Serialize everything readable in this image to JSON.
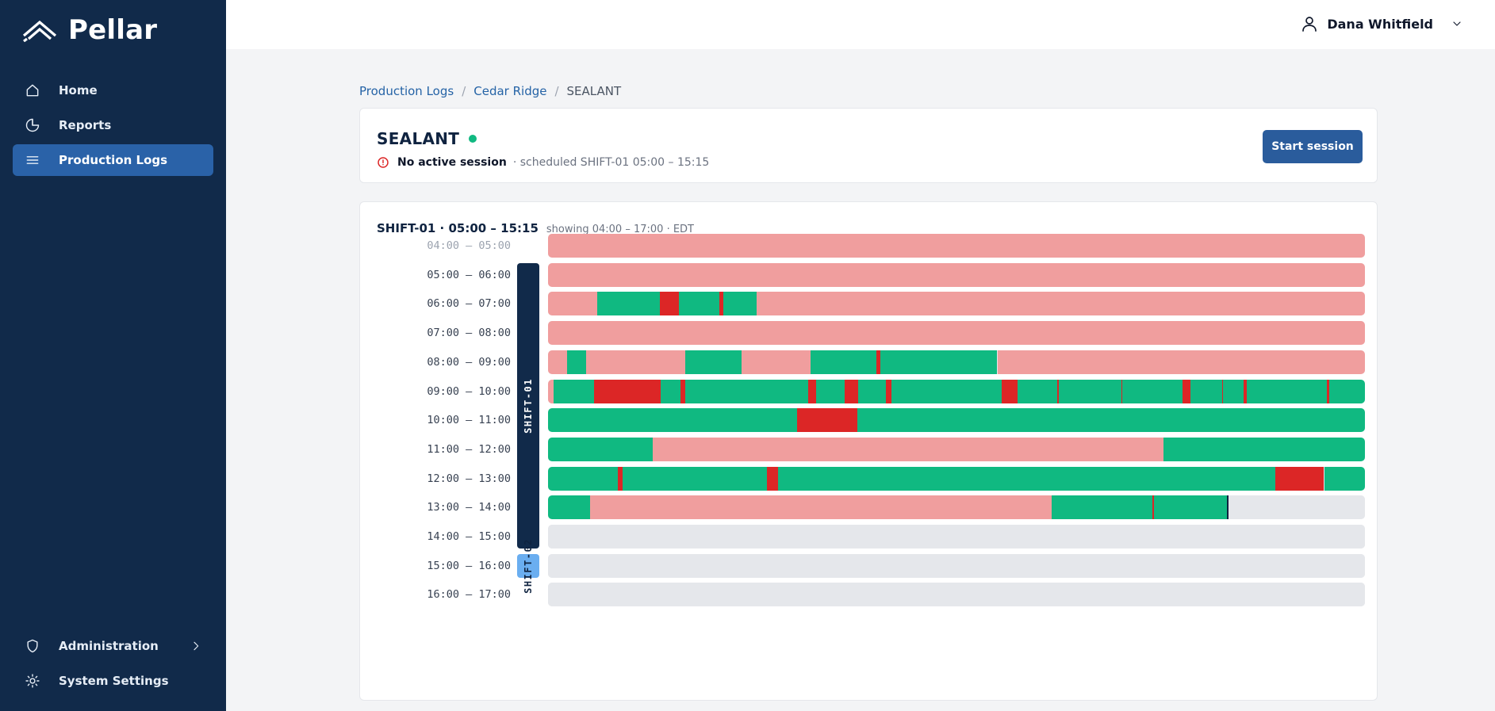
{
  "brand": {
    "name": "Pellar"
  },
  "sidebar": {
    "items": [
      {
        "label": "Home",
        "icon": "home-icon"
      },
      {
        "label": "Reports",
        "icon": "pie-chart-icon"
      },
      {
        "label": "Production Logs",
        "icon": "list-icon",
        "active": true
      }
    ],
    "bottom": [
      {
        "label": "Administration",
        "icon": "shield-icon"
      },
      {
        "label": "System Settings",
        "icon": "gear-icon"
      }
    ]
  },
  "user": {
    "name": "Dana Whitfield"
  },
  "breadcrumb": {
    "root": "Production Logs",
    "site": "Cedar Ridge",
    "current": "SEALANT"
  },
  "line": {
    "name": "SEALANT",
    "status_color": "#10b981",
    "session_status": "No active session",
    "schedule_text": "· scheduled SHIFT-01 05:00 – 15:15",
    "start_button": "Start session"
  },
  "timeline": {
    "title": "SHIFT-01 · 05:00 – 15:15",
    "subtitle": "showing 04:00 – 17:00 · EDT",
    "colors": {
      "running": "#10b981",
      "down": "#dc2626",
      "idle": "#f09e9e",
      "future": "#e5e7eb"
    },
    "shifts": [
      {
        "label": "SHIFT-01",
        "start_row": 1,
        "end_row": 10,
        "color": "#112a4a",
        "text_color": "#ffffff"
      },
      {
        "label": "SHIFT-02",
        "start_row": 11,
        "end_row": 11,
        "color": "#6aaef0",
        "text_color": "#0f2340"
      }
    ],
    "rows": [
      {
        "label": "04:00 – 05:00",
        "dim": true,
        "segments": [
          [
            "idle",
            0,
            60
          ]
        ]
      },
      {
        "label": "05:00 – 06:00",
        "segments": [
          [
            "idle",
            0,
            60
          ]
        ]
      },
      {
        "label": "06:00 – 07:00",
        "segments": [
          [
            "idle",
            0,
            3.6
          ],
          [
            "running",
            3.6,
            8.2
          ],
          [
            "down",
            8.2,
            9.6
          ],
          [
            "running",
            9.6,
            12.6
          ],
          [
            "down",
            12.6,
            12.9
          ],
          [
            "running",
            12.9,
            15.3
          ],
          [
            "idle",
            15.3,
            60
          ]
        ]
      },
      {
        "label": "07:00 – 08:00",
        "segments": [
          [
            "idle",
            0,
            60
          ]
        ]
      },
      {
        "label": "08:00 – 09:00",
        "segments": [
          [
            "idle",
            0,
            1.4
          ],
          [
            "running",
            1.4,
            2.8
          ],
          [
            "idle",
            2.8,
            10.1
          ],
          [
            "running",
            10.1,
            14.2
          ],
          [
            "idle",
            14.2,
            19.3
          ],
          [
            "running",
            19.3,
            24.1
          ],
          [
            "down",
            24.1,
            24.4
          ],
          [
            "running",
            24.4,
            33.0
          ],
          [
            "idle",
            33.0,
            60
          ]
        ]
      },
      {
        "label": "09:00 – 10:00",
        "segments": [
          [
            "idle",
            0,
            0.4
          ],
          [
            "running",
            0.4,
            3.4
          ],
          [
            "down",
            3.4,
            8.3
          ],
          [
            "running",
            8.3,
            9.7
          ],
          [
            "down",
            9.7,
            10.1
          ],
          [
            "running",
            10.1,
            19.1
          ],
          [
            "down",
            19.1,
            19.7
          ],
          [
            "running",
            19.7,
            21.8
          ],
          [
            "down",
            21.8,
            22.8
          ],
          [
            "running",
            22.8,
            24.8
          ],
          [
            "down",
            24.8,
            25.2
          ],
          [
            "running",
            25.2,
            33.3
          ],
          [
            "down",
            33.3,
            34.5
          ],
          [
            "running",
            34.5,
            37.4
          ],
          [
            "down",
            37.4,
            37.5
          ],
          [
            "running",
            37.5,
            42.1
          ],
          [
            "down",
            42.1,
            42.2
          ],
          [
            "running",
            42.2,
            46.6
          ],
          [
            "down",
            46.6,
            47.2
          ],
          [
            "running",
            47.2,
            49.5
          ],
          [
            "down",
            49.5,
            49.6
          ],
          [
            "running",
            49.6,
            51.1
          ],
          [
            "down",
            51.1,
            51.3
          ],
          [
            "running",
            51.3,
            57.2
          ],
          [
            "down",
            57.2,
            57.4
          ],
          [
            "running",
            57.4,
            60
          ]
        ]
      },
      {
        "label": "10:00 – 11:00",
        "segments": [
          [
            "running",
            0,
            18.3
          ],
          [
            "down",
            18.3,
            22.7
          ],
          [
            "running",
            22.7,
            60
          ]
        ]
      },
      {
        "label": "11:00 – 12:00",
        "segments": [
          [
            "running",
            0,
            7.7
          ],
          [
            "idle",
            7.7,
            45.2
          ],
          [
            "running",
            45.2,
            60
          ]
        ]
      },
      {
        "label": "12:00 – 13:00",
        "segments": [
          [
            "running",
            0,
            5.1
          ],
          [
            "down",
            5.1,
            5.5
          ],
          [
            "running",
            5.5,
            16.1
          ],
          [
            "down",
            16.1,
            16.9
          ],
          [
            "running",
            16.9,
            53.4
          ],
          [
            "down",
            53.4,
            57.0
          ],
          [
            "running",
            57.0,
            60
          ]
        ]
      },
      {
        "label": "13:00 – 14:00",
        "segments": [
          [
            "running",
            0,
            3.1
          ],
          [
            "idle",
            3.1,
            37.0
          ],
          [
            "running",
            37.0,
            44.4
          ],
          [
            "down",
            44.4,
            44.5
          ],
          [
            "running",
            44.5,
            49.9
          ],
          [
            "future",
            49.9,
            60
          ]
        ],
        "now": 49.9
      },
      {
        "label": "14:00 – 15:00",
        "segments": [
          [
            "future",
            0,
            60
          ]
        ]
      },
      {
        "label": "15:00 – 16:00",
        "segments": [
          [
            "future",
            0,
            60
          ]
        ]
      },
      {
        "label": "16:00 – 17:00",
        "segments": [
          [
            "future",
            0,
            60
          ]
        ]
      }
    ]
  }
}
